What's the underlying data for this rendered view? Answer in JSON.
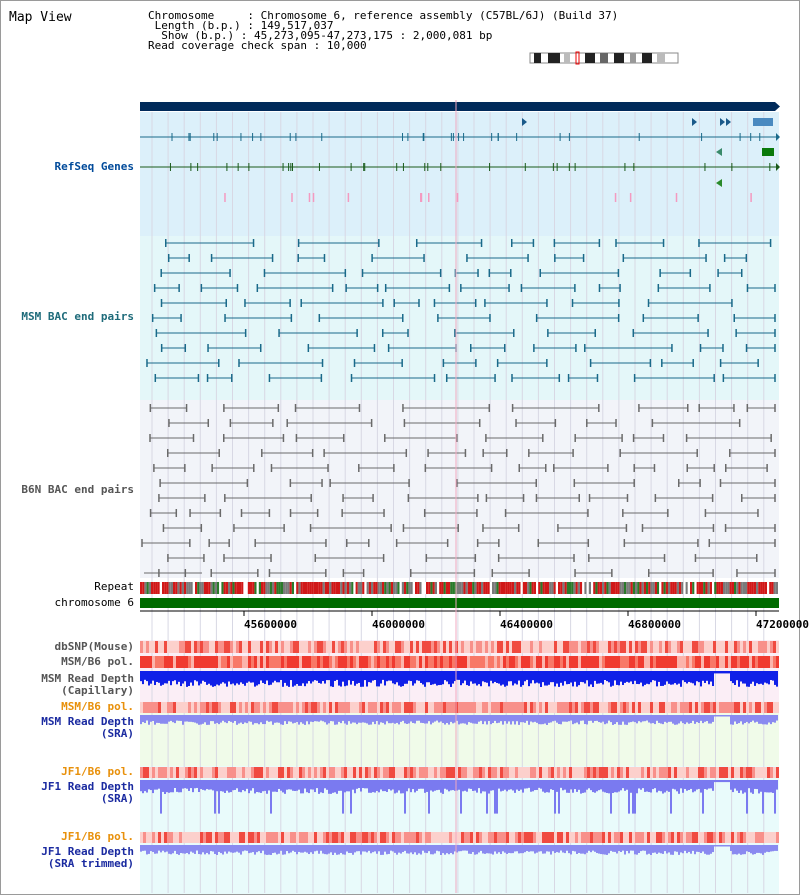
{
  "title": "Map View",
  "info": {
    "chromosome_label": "Chromosome    ",
    "chromosome_value": "Chromosome 6, reference assembly (C57BL/6J) (Build 37)",
    "length_label": " Length (b.p.)",
    "length_value": "149,517,037",
    "show_label": "  Show (b.p.)",
    "show_value": "45,273,095-47,273,175 : 2,000,081 bp",
    "coverage_label": "Read coverage check span",
    "coverage_value": "10,000"
  },
  "tracks": {
    "refseq": "RefSeq Genes",
    "msm_bac": "MSM BAC end pairs",
    "b6n_bac": "B6N BAC end pairs",
    "repeat": "Repeat",
    "chromosome": "chromosome 6",
    "dbsnp": "dbSNP(Mouse)",
    "msm_b6_pol": "MSM/B6 pol.",
    "msm_depth_cap_1": "MSM Read Depth",
    "msm_depth_cap_2": "(Capillary)",
    "msm_b6_pol_2": "MSM/B6 pol.",
    "msm_depth_sra_1": "MSM Read Depth",
    "msm_depth_sra_2": "(SRA)",
    "jf1_b6_pol": "JF1/B6 pol.",
    "jf1_depth_sra_1": "JF1 Read Depth",
    "jf1_depth_sra_2": "(SRA)",
    "jf1_b6_pol_2": "JF1/B6 pol.",
    "jf1_depth_trim_1": "JF1 Read Depth",
    "jf1_depth_trim_2": "(SRA trimmed)"
  },
  "axis": {
    "ticks": [
      "45600000",
      "46000000",
      "46400000",
      "46800000",
      "47200000"
    ]
  },
  "colors": {
    "navy_bar": "#002a5a",
    "refseq_bg": "#dcf0fa",
    "msm_bg": "#e4f7f9",
    "b6n_bg": "#f2f4f9",
    "chrom_green": "#006b00",
    "pol_red": "#f0302a",
    "depth_blue": "#1020e8",
    "depth_light": "#8a8af0"
  }
}
